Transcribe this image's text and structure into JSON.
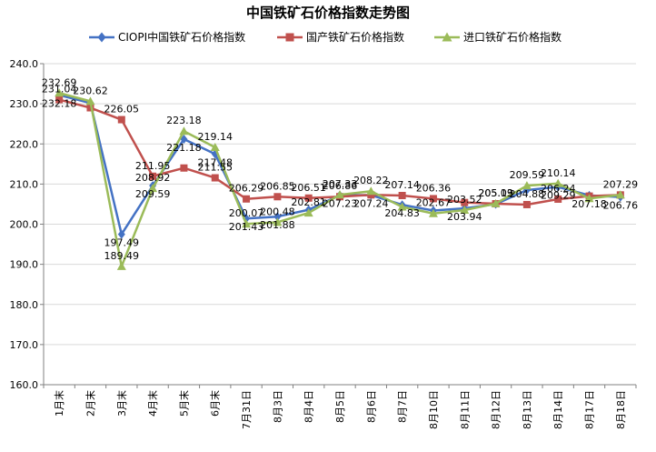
{
  "chart_data": {
    "type": "line",
    "title": "中国铁矿石价格指数走势图",
    "xlabel": "",
    "ylabel": "",
    "ylim": [
      160.0,
      240.0
    ],
    "y_ticks": [
      "160.0",
      "170.0",
      "180.0",
      "190.0",
      "200.0",
      "210.0",
      "220.0",
      "230.0",
      "240.0"
    ],
    "grid": "horizontal",
    "legend_position": "top",
    "categories": [
      "1月末",
      "2月末",
      "3月末",
      "4月末",
      "5月末",
      "6月末",
      "7月31日",
      "8月3日",
      "8月4日",
      "8月5日",
      "8月6日",
      "8月7日",
      "8月10日",
      "8月11日",
      "8月12日",
      "8月13日",
      "8月14日",
      "8月17日",
      "8月18日"
    ],
    "series": [
      {
        "name": "CIOPI中国铁矿石价格指数",
        "color": "#4472c4",
        "marker": "diamond",
        "values": [
          232.18,
          230.2,
          197.49,
          209.59,
          221.18,
          217.48,
          201.43,
          201.88,
          203.6,
          207.23,
          207.24,
          204.83,
          203.4,
          203.94,
          205.0,
          208.5,
          209.29,
          207.18,
          206.76
        ],
        "labels": [
          "232.18",
          "",
          "197.49",
          "209.59",
          "221.18",
          "217.48",
          "201.43",
          "201.88",
          "",
          "207.23",
          "207.24",
          "204.83",
          "",
          "203.94",
          "",
          "",
          "209.29",
          "207.18",
          "206.76"
        ]
      },
      {
        "name": "国产铁矿石价格指数",
        "color": "#c0504d",
        "marker": "square",
        "values": [
          231.04,
          229.0,
          226.05,
          211.95,
          214.0,
          211.55,
          206.29,
          206.85,
          206.51,
          206.86,
          207.3,
          207.14,
          206.36,
          205.4,
          205.09,
          204.88,
          206.24,
          207.0,
          207.29
        ],
        "labels": [
          "231.04",
          "",
          "226.05",
          "211.95",
          "",
          "211.55",
          "206.29",
          "206.85",
          "206.51",
          "206.86",
          "",
          "207.14",
          "206.36",
          "",
          "205.09",
          "204.88",
          "206.24",
          "",
          "207.29"
        ]
      },
      {
        "name": "进口铁矿石价格指数",
        "color": "#9bbb59",
        "marker": "triangle",
        "values": [
          232.69,
          230.62,
          189.49,
          208.92,
          223.18,
          219.14,
          200.07,
          200.48,
          202.81,
          207.33,
          208.22,
          204.3,
          202.67,
          203.52,
          205.13,
          209.59,
          210.14,
          206.4,
          207.3
        ],
        "labels": [
          "232.69",
          "230.62",
          "189.49",
          "208.92",
          "223.18",
          "219.14",
          "200.07",
          "200.48",
          "202.81",
          "207.33",
          "208.22",
          "",
          "202.67",
          "203.52",
          "205.13",
          "209.59",
          "210.14",
          "",
          ""
        ]
      }
    ]
  }
}
